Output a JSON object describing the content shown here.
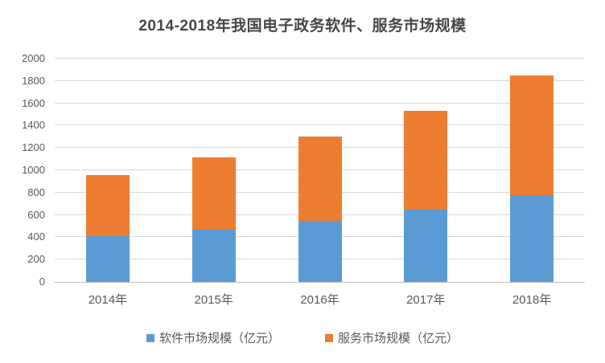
{
  "chart": {
    "title": "2014-2018年我国电子政务软件、服务市场规模"
  },
  "chart_data": {
    "type": "bar",
    "stacked": true,
    "title": "2014-2018年我国电子政务软件、服务市场规模",
    "categories": [
      "2014年",
      "2015年",
      "2016年",
      "2017年",
      "2018年"
    ],
    "series": [
      {
        "name": "软件市场规模（亿元）",
        "color": "#5B9BD5",
        "values": [
          410,
          465,
          545,
          645,
          775
        ]
      },
      {
        "name": "服务市场规模（亿元）",
        "color": "#ED7D31",
        "values": [
          550,
          650,
          755,
          885,
          1075
        ]
      }
    ],
    "totals": [
      960,
      1115,
      1300,
      1530,
      1850
    ],
    "xlabel": "",
    "ylabel": "",
    "ylim": [
      0,
      2000
    ],
    "yticks": [
      0,
      200,
      400,
      600,
      800,
      1000,
      1200,
      1400,
      1600,
      1800,
      2000
    ],
    "grid": true,
    "legend_position": "bottom"
  },
  "colors": {
    "background": "#FFFFFF",
    "grid": "#D9D9D9",
    "axis": "#BFBFBF",
    "title_text": "#474747",
    "tick_text": "#595959"
  }
}
